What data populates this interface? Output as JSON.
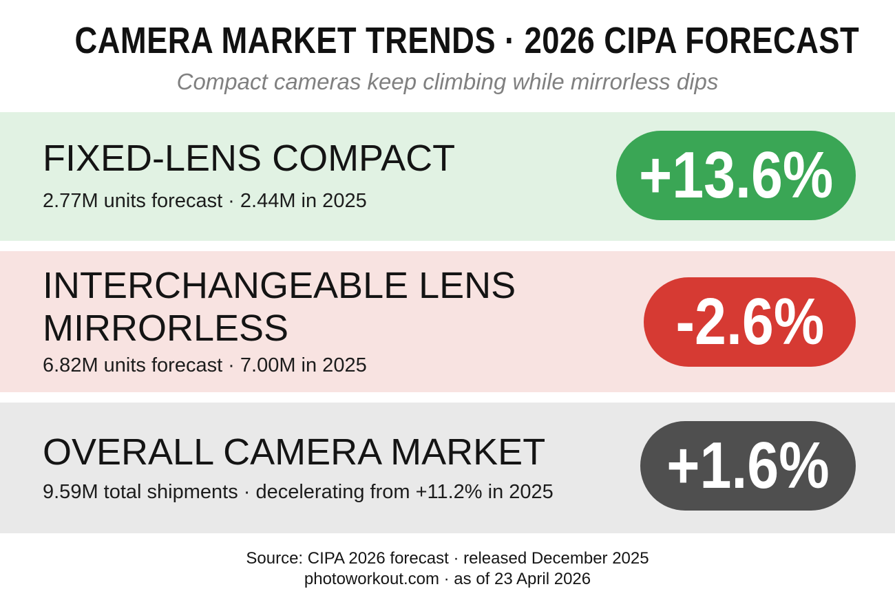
{
  "header": {
    "title": "CAMERA MARKET TRENDS · 2026 CIPA FORECAST",
    "subtitle": "Compact cameras keep climbing while mirrorless dips"
  },
  "rows": [
    {
      "name": "FIXED-LENS COMPACT",
      "detail": "2.77M units forecast · 2.44M in 2025",
      "change": "+13.6%",
      "band_color": "#e1f2e3",
      "badge_color": "#3aa655"
    },
    {
      "name": "INTERCHANGEABLE LENS MIRRORLESS",
      "name_line1": "INTERCHANGEABLE LENS",
      "name_line2": "MIRRORLESS",
      "detail": "6.82M units forecast · 7.00M in 2025",
      "change": "-2.6%",
      "band_color": "#f8e3e1",
      "badge_color": "#d63a33"
    },
    {
      "name": "OVERALL CAMERA MARKET",
      "detail": "9.59M total shipments · decelerating from +11.2% in 2025",
      "change": "+1.6%",
      "band_color": "#e9e9e9",
      "badge_color": "#4f4f4f"
    }
  ],
  "footer": {
    "source": "Source: CIPA 2026 forecast · released December 2025",
    "credit": "photoworkout.com · as of 23 April 2026"
  }
}
